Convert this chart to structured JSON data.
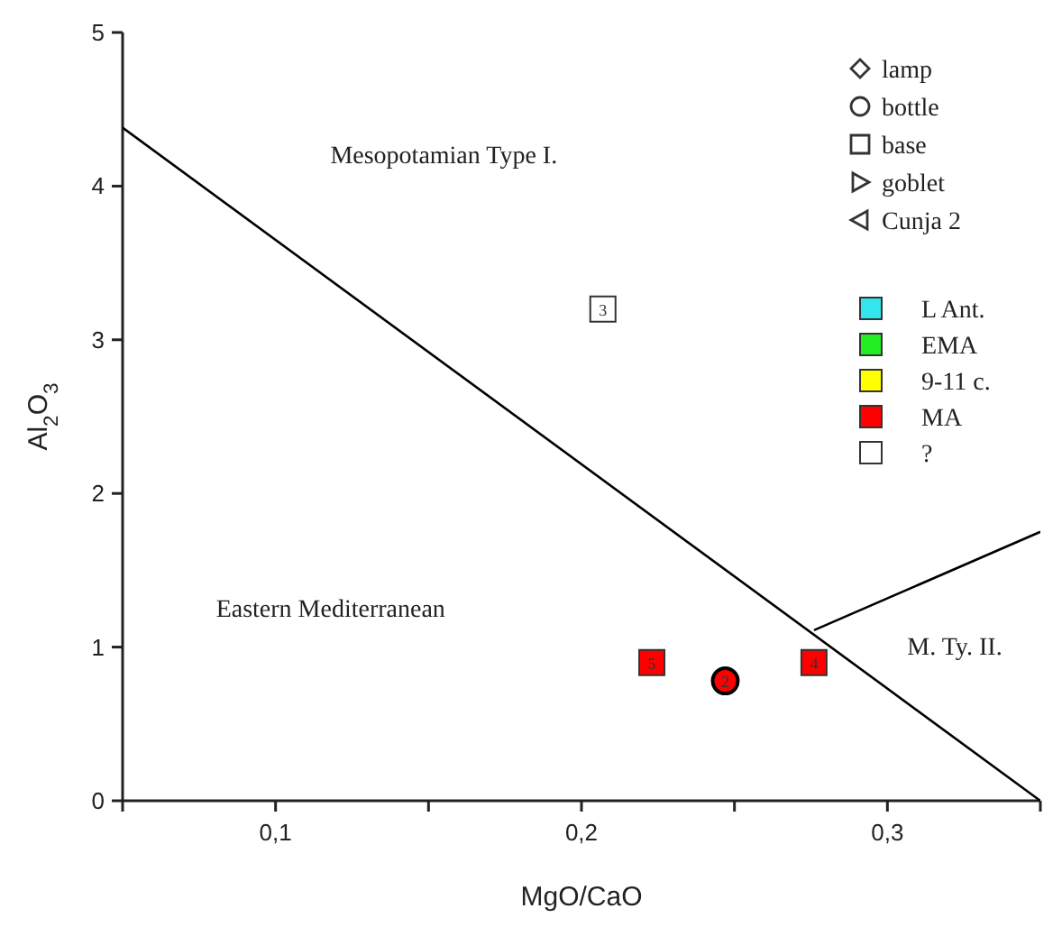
{
  "chart_data": {
    "type": "scatter",
    "xlabel": "MgO/CaO",
    "ylabel": "Al$_{2}$O$_{3}$",
    "xlim": [
      0.05,
      0.35
    ],
    "ylim": [
      0,
      5
    ],
    "xticks": [
      {
        "value": 0.05,
        "label": null
      },
      {
        "value": 0.1,
        "label": "0,1"
      },
      {
        "value": 0.15,
        "label": null
      },
      {
        "value": 0.2,
        "label": "0,2"
      },
      {
        "value": 0.25,
        "label": null
      },
      {
        "value": 0.3,
        "label": "0,3"
      },
      {
        "value": 0.35,
        "label": null
      }
    ],
    "yticks": [
      0,
      1,
      2,
      3,
      4,
      5
    ],
    "legend": "top right",
    "series": [
      {
        "name": "L Ant.",
        "color": "#33e6ee"
      },
      {
        "name": "EMA",
        "color": "#22ee22"
      },
      {
        "name": "9-11 c.",
        "color": "#ffff00"
      },
      {
        "name": "MA",
        "color": "#ff0000",
        "marker": "square",
        "x": [
          0.223,
          0.276
        ],
        "values": [
          0.9,
          0.9
        ]
      },
      {
        "name": "?",
        "color": "#ffffff",
        "marker": "square",
        "x": [
          0.207
        ],
        "values": [
          3.2
        ]
      },
      {
        "color": "#ff0000",
        "marker": "circle",
        "x": [
          0.247
        ],
        "values": [
          0.78
        ]
      },
      {
        "type": "line",
        "color": "#000000",
        "x": [
          0.05,
          0.35
        ],
        "values": [
          4.38,
          0
        ]
      },
      {
        "type": "line",
        "color": "#000000",
        "x": [
          0.276,
          0.35
        ],
        "values": [
          1.11,
          1.75
        ]
      }
    ],
    "annotations": [
      "Mesopotamian Type I.",
      "Eastern Mediterranean",
      "M. Ty. II.",
      "lamp",
      "bottle",
      "base",
      "goblet",
      "Cunja 2",
      {
        "text": "5",
        "x": 0.223,
        "y": 0.9
      },
      {
        "text": "2",
        "x": 0.247,
        "y": 0.78
      },
      {
        "text": "4",
        "x": 0.276,
        "y": 0.9
      },
      {
        "text": "3",
        "x": 0.207,
        "y": 3.2
      }
    ]
  }
}
